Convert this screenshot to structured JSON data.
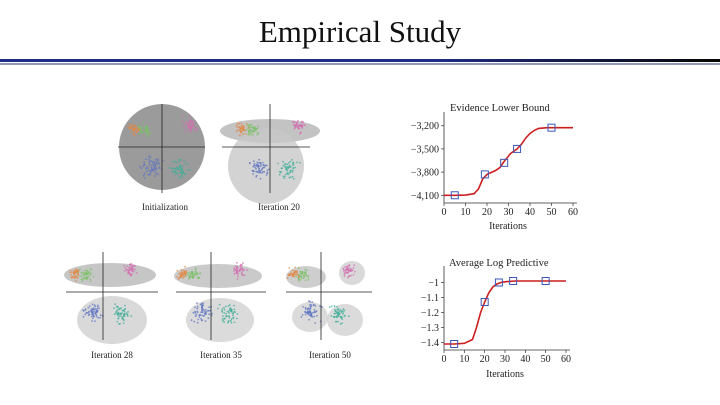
{
  "slide": {
    "title": "Empirical Study"
  },
  "scatter_panels": [
    {
      "caption": "Initialization"
    },
    {
      "caption": "Iteration 20"
    },
    {
      "caption": "Iteration 28"
    },
    {
      "caption": "Iteration 35"
    },
    {
      "caption": "Iteration 50"
    }
  ],
  "colors": {
    "curve": "#cc1f1f",
    "marker": "#3b57b8",
    "cluster_pink": "#d36fb0",
    "cluster_green": "#7cc06a",
    "cluster_orange": "#e08a4a",
    "cluster_blue": "#5f74c2",
    "cluster_teal": "#3fae98"
  },
  "chart_data": [
    {
      "type": "line",
      "title": "Evidence Lower Bound",
      "xlabel": "Iterations",
      "ylabel": "",
      "xlim": [
        0,
        60
      ],
      "ylim": [
        -4200,
        -3100
      ],
      "x_ticks": [
        0,
        10,
        20,
        30,
        40,
        50,
        60
      ],
      "y_ticks": [
        -3200,
        -3500,
        -3800,
        -4100
      ],
      "y_tick_labels": [
        "−3,200",
        "−3,500",
        "−3,800",
        "−4,100"
      ],
      "series": [
        {
          "name": "curve",
          "x": [
            0,
            5,
            10,
            14,
            16,
            18,
            20,
            24,
            26,
            28,
            31,
            34,
            36,
            38,
            40,
            42,
            44,
            48,
            50,
            55,
            60
          ],
          "y": [
            -4100,
            -4100,
            -4098,
            -4080,
            -4020,
            -3890,
            -3830,
            -3780,
            -3740,
            -3660,
            -3560,
            -3500,
            -3440,
            -3360,
            -3300,
            -3260,
            -3235,
            -3225,
            -3225,
            -3225,
            -3225
          ]
        },
        {
          "name": "markers",
          "x": [
            5,
            19,
            28,
            34,
            50
          ],
          "y": [
            -4100,
            -3830,
            -3680,
            -3500,
            -3225
          ]
        }
      ]
    },
    {
      "type": "line",
      "title": "Average Log Predictive",
      "xlabel": "Iterations",
      "ylabel": "",
      "xlim": [
        0,
        60
      ],
      "ylim": [
        -1.45,
        -0.93
      ],
      "x_ticks": [
        0,
        10,
        20,
        30,
        40,
        50,
        60
      ],
      "y_ticks": [
        -1,
        -1.1,
        -1.2,
        -1.3,
        -1.4
      ],
      "y_tick_labels": [
        "−1",
        "−1.1",
        "−1.2",
        "−1.3",
        "−1.4"
      ],
      "series": [
        {
          "name": "curve",
          "x": [
            0,
            5,
            10,
            14,
            16,
            18,
            20,
            22,
            24,
            26,
            28,
            30,
            35,
            40,
            50,
            60
          ],
          "y": [
            -1.41,
            -1.41,
            -1.405,
            -1.38,
            -1.3,
            -1.2,
            -1.13,
            -1.07,
            -1.03,
            -1.01,
            -1.0,
            -0.995,
            -0.99,
            -0.99,
            -0.99,
            -0.99
          ]
        },
        {
          "name": "markers",
          "x": [
            5,
            20,
            27,
            34,
            50
          ],
          "y": [
            -1.41,
            -1.13,
            -1.0,
            -0.99,
            -0.99
          ]
        }
      ]
    }
  ]
}
